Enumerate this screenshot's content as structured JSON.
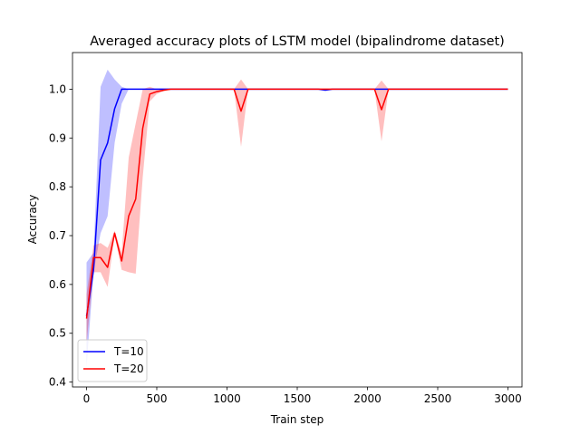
{
  "chart_data": {
    "type": "line",
    "title": "Averaged accuracy plots of LSTM model (bipalindrome dataset)",
    "xlabel": "Train step",
    "ylabel": "Accuracy",
    "xlim": [
      -100,
      3100
    ],
    "ylim": [
      0.39,
      1.075
    ],
    "xticks": [
      0,
      500,
      1000,
      1500,
      2000,
      2500,
      3000
    ],
    "yticks": [
      0.4,
      0.5,
      0.6,
      0.7,
      0.8,
      0.9,
      1.0
    ],
    "xtick_labels": [
      "0",
      "500",
      "1000",
      "1500",
      "2000",
      "2500",
      "3000"
    ],
    "ytick_labels": [
      "0.4",
      "0.5",
      "0.6",
      "0.7",
      "0.8",
      "0.9",
      "1.0"
    ],
    "legend_position": "lower-left",
    "grid": false,
    "x": [
      0,
      50,
      100,
      150,
      200,
      250,
      300,
      350,
      400,
      450,
      500,
      550,
      600,
      650,
      700,
      750,
      800,
      850,
      900,
      950,
      1000,
      1050,
      1100,
      1150,
      1200,
      1250,
      1300,
      1350,
      1400,
      1450,
      1500,
      1550,
      1600,
      1650,
      1700,
      1750,
      1800,
      1850,
      1900,
      1950,
      2000,
      2050,
      2100,
      2150,
      2200,
      2250,
      2300,
      2350,
      2400,
      2450,
      2500,
      2550,
      2600,
      2650,
      2700,
      2750,
      2800,
      2850,
      2900,
      2950,
      3000
    ],
    "series": [
      {
        "name": "T=10",
        "color": "#0000ff",
        "values": [
          0.535,
          0.63,
          0.855,
          0.89,
          0.96,
          1.0,
          1.0,
          1.0,
          1.0,
          1.0,
          1.0,
          1.0,
          1.0,
          1.0,
          1.0,
          1.0,
          1.0,
          1.0,
          1.0,
          1.0,
          1.0,
          1.0,
          1.0,
          1.0,
          1.0,
          1.0,
          1.0,
          1.0,
          1.0,
          1.0,
          1.0,
          1.0,
          1.0,
          1.0,
          0.998,
          1.0,
          1.0,
          1.0,
          1.0,
          1.0,
          1.0,
          1.0,
          1.0,
          1.0,
          1.0,
          1.0,
          1.0,
          1.0,
          1.0,
          1.0,
          1.0,
          1.0,
          1.0,
          1.0,
          1.0,
          1.0,
          1.0,
          1.0,
          1.0,
          1.0,
          1.0
        ],
        "lower": [
          0.43,
          0.625,
          0.705,
          0.74,
          0.89,
          0.97,
          1.0,
          1.0,
          1.0,
          1.0,
          1.0,
          1.0,
          1.0,
          1.0,
          1.0,
          1.0,
          1.0,
          1.0,
          1.0,
          1.0,
          1.0,
          1.0,
          1.0,
          1.0,
          1.0,
          1.0,
          1.0,
          1.0,
          1.0,
          1.0,
          1.0,
          1.0,
          1.0,
          1.0,
          0.997,
          1.0,
          1.0,
          1.0,
          1.0,
          1.0,
          1.0,
          1.0,
          1.0,
          1.0,
          1.0,
          1.0,
          1.0,
          1.0,
          1.0,
          1.0,
          1.0,
          1.0,
          1.0,
          1.0,
          1.0,
          1.0,
          1.0,
          1.0,
          1.0,
          1.0,
          1.0
        ],
        "upper": [
          0.645,
          0.665,
          1.005,
          1.04,
          1.02,
          1.005,
          1.0,
          1.0,
          1.0,
          1.0,
          1.0,
          1.0,
          1.0,
          1.0,
          1.0,
          1.0,
          1.0,
          1.0,
          1.0,
          1.0,
          1.0,
          1.0,
          1.0,
          1.0,
          1.0,
          1.0,
          1.0,
          1.0,
          1.0,
          1.0,
          1.0,
          1.0,
          1.0,
          1.0,
          1.0,
          1.0,
          1.0,
          1.0,
          1.0,
          1.0,
          1.0,
          1.0,
          1.0,
          1.0,
          1.0,
          1.0,
          1.0,
          1.0,
          1.0,
          1.0,
          1.0,
          1.0,
          1.0,
          1.0,
          1.0,
          1.0,
          1.0,
          1.0,
          1.0,
          1.0,
          1.0
        ]
      },
      {
        "name": "T=20",
        "color": "#ff0000",
        "values": [
          0.53,
          0.655,
          0.655,
          0.635,
          0.705,
          0.648,
          0.74,
          0.775,
          0.92,
          0.99,
          0.995,
          0.998,
          1.0,
          1.0,
          1.0,
          1.0,
          1.0,
          1.0,
          1.0,
          1.0,
          1.0,
          1.0,
          0.955,
          1.0,
          1.0,
          1.0,
          1.0,
          1.0,
          1.0,
          1.0,
          1.0,
          1.0,
          1.0,
          1.0,
          1.0,
          1.0,
          1.0,
          1.0,
          1.0,
          1.0,
          1.0,
          1.0,
          0.958,
          1.0,
          1.0,
          1.0,
          1.0,
          1.0,
          1.0,
          1.0,
          1.0,
          1.0,
          1.0,
          1.0,
          1.0,
          1.0,
          1.0,
          1.0,
          1.0,
          1.0,
          1.0
        ],
        "lower": [
          0.48,
          0.625,
          0.625,
          0.595,
          0.7,
          0.63,
          0.625,
          0.622,
          0.82,
          0.975,
          0.99,
          0.996,
          1.0,
          1.0,
          1.0,
          1.0,
          1.0,
          1.0,
          1.0,
          1.0,
          1.0,
          1.0,
          0.882,
          1.0,
          1.0,
          1.0,
          1.0,
          1.0,
          1.0,
          1.0,
          1.0,
          1.0,
          1.0,
          1.0,
          1.0,
          1.0,
          1.0,
          1.0,
          1.0,
          1.0,
          1.0,
          1.0,
          0.893,
          1.0,
          1.0,
          1.0,
          1.0,
          1.0,
          1.0,
          1.0,
          1.0,
          1.0,
          1.0,
          1.0,
          1.0,
          1.0,
          1.0,
          1.0,
          1.0,
          1.0,
          1.0
        ],
        "upper": [
          0.58,
          0.68,
          0.685,
          0.675,
          0.71,
          0.665,
          0.86,
          0.93,
          1.0,
          1.005,
          1.0,
          1.0,
          1.0,
          1.0,
          1.0,
          1.0,
          1.0,
          1.0,
          1.0,
          1.0,
          1.0,
          1.0,
          1.02,
          1.0,
          1.0,
          1.0,
          1.0,
          1.0,
          1.0,
          1.0,
          1.0,
          1.0,
          1.0,
          1.0,
          1.0,
          1.0,
          1.0,
          1.0,
          1.0,
          1.0,
          1.0,
          1.0,
          1.018,
          1.0,
          1.0,
          1.0,
          1.0,
          1.0,
          1.0,
          1.0,
          1.0,
          1.0,
          1.0,
          1.0,
          1.0,
          1.0,
          1.0,
          1.0,
          1.0,
          1.0,
          1.0
        ]
      }
    ]
  }
}
